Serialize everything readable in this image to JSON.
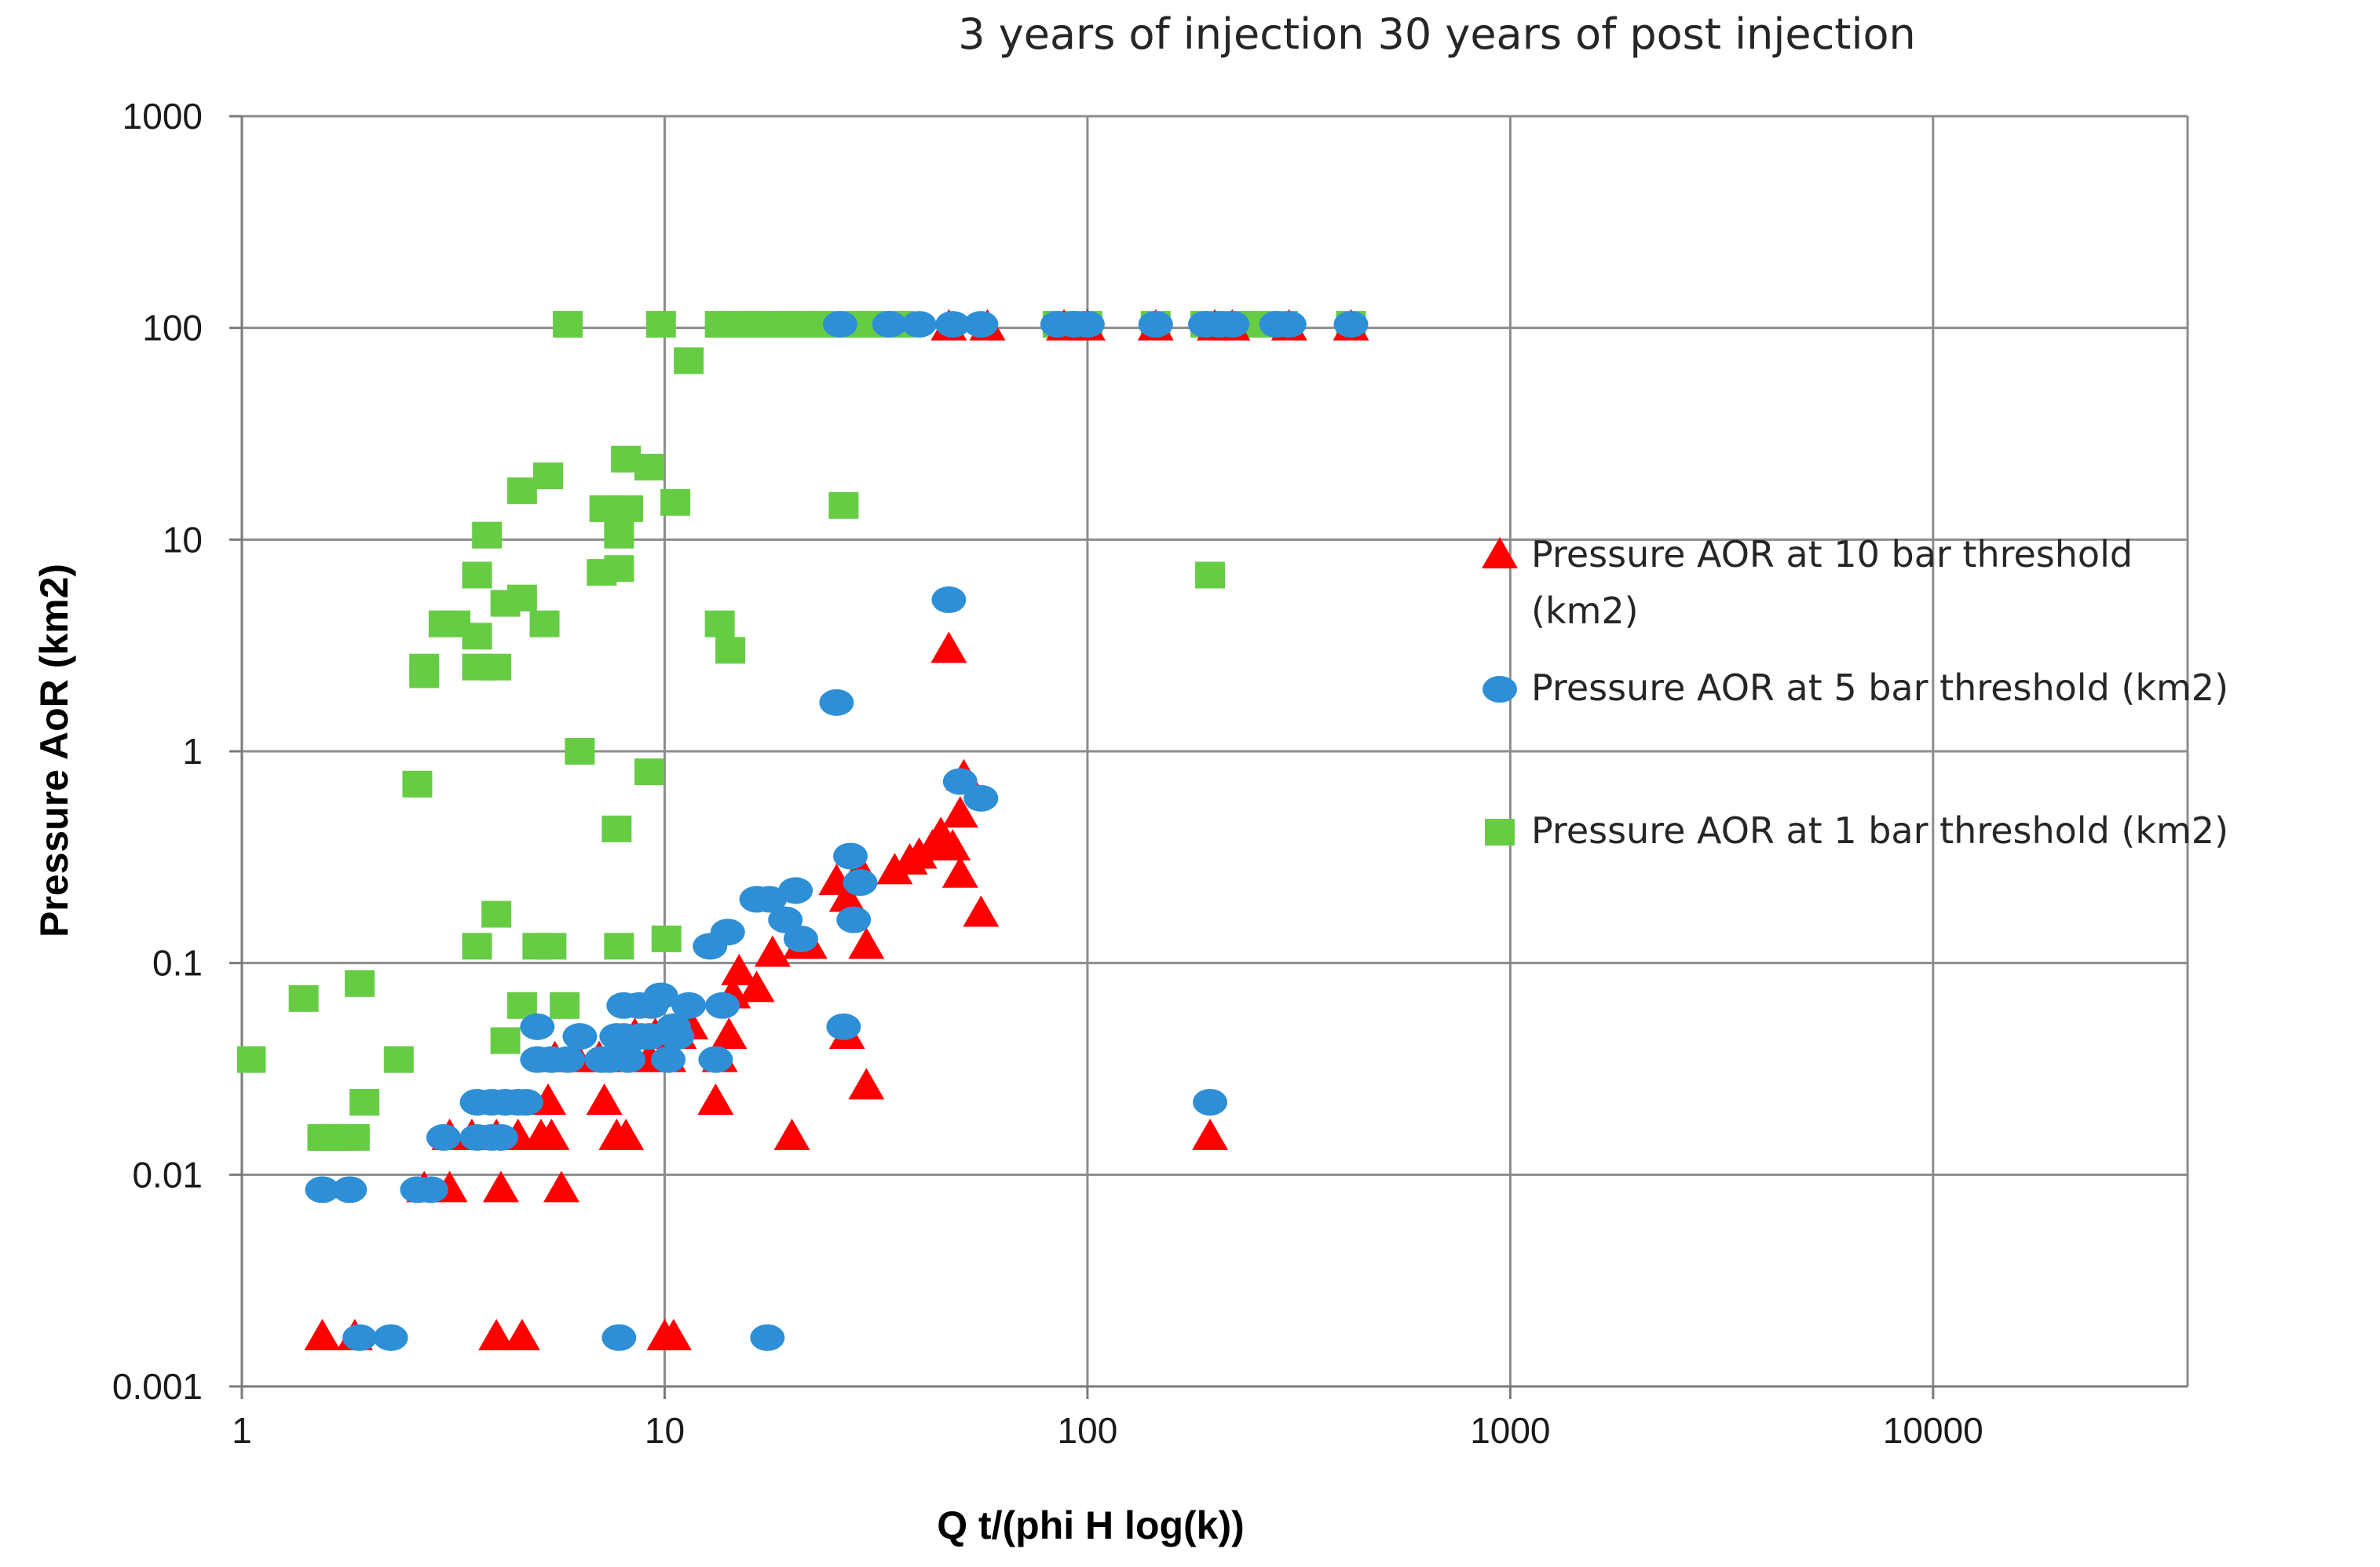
{
  "chart_data": {
    "type": "scatter",
    "title": "3 years of injection 30 years of post injection",
    "xlabel": "Q t/(phi H log(k))",
    "ylabel": "Pressure AoR (km2)",
    "xscale": "log",
    "yscale": "log",
    "xlim": [
      1,
      40000
    ],
    "ylim": [
      0.001,
      1000
    ],
    "x_ticks": [
      "1",
      "10",
      "100",
      "1000",
      "10000"
    ],
    "y_ticks": [
      "0.001",
      "0.01",
      "0.1",
      "1",
      "10",
      "100",
      "1000"
    ],
    "grid": true,
    "legend_position": "right",
    "series": [
      {
        "name": "Pressure AOR at 10 bar threshold",
        "legend_label_lines": [
          "Pressure AOR at 10 bar threshold",
          "(km2)"
        ],
        "marker": "triangle",
        "color": "#ff0000",
        "points": [
          [
            1.55,
            0.0017
          ],
          [
            1.85,
            0.0017
          ],
          [
            4.0,
            0.0017
          ],
          [
            4.6,
            0.0017
          ],
          [
            10.0,
            0.0017
          ],
          [
            10.5,
            0.0017
          ],
          [
            2.7,
            0.0085
          ],
          [
            3.1,
            0.0085
          ],
          [
            4.1,
            0.0085
          ],
          [
            5.7,
            0.0085
          ],
          [
            3.1,
            0.015
          ],
          [
            3.5,
            0.015
          ],
          [
            4.0,
            0.015
          ],
          [
            4.5,
            0.015
          ],
          [
            5.1,
            0.015
          ],
          [
            5.4,
            0.015
          ],
          [
            7.7,
            0.015
          ],
          [
            8.1,
            0.015
          ],
          [
            20,
            0.015
          ],
          [
            195,
            0.015
          ],
          [
            5.3,
            0.022
          ],
          [
            7.2,
            0.022
          ],
          [
            13.2,
            0.022
          ],
          [
            30,
            0.026
          ],
          [
            5.5,
            0.035
          ],
          [
            6.2,
            0.035
          ],
          [
            7.0,
            0.035
          ],
          [
            8.0,
            0.035
          ],
          [
            9.2,
            0.035
          ],
          [
            10.2,
            0.035
          ],
          [
            13.5,
            0.035
          ],
          [
            8.5,
            0.045
          ],
          [
            9.5,
            0.045
          ],
          [
            10.8,
            0.045
          ],
          [
            14.2,
            0.045
          ],
          [
            27,
            0.045
          ],
          [
            11.5,
            0.05
          ],
          [
            14.5,
            0.07
          ],
          [
            16.5,
            0.075
          ],
          [
            15,
            0.09
          ],
          [
            18,
            0.11
          ],
          [
            21,
            0.12
          ],
          [
            22,
            0.12
          ],
          [
            30,
            0.12
          ],
          [
            27,
            0.2
          ],
          [
            25.5,
            0.24
          ],
          [
            29,
            0.27
          ],
          [
            35,
            0.27
          ],
          [
            38,
            0.3
          ],
          [
            40,
            0.32
          ],
          [
            43,
            0.35
          ],
          [
            45,
            0.4
          ],
          [
            48,
            0.35
          ],
          [
            50,
            0.5
          ],
          [
            50,
            0.26
          ],
          [
            56,
            0.17
          ],
          [
            51,
            0.75
          ],
          [
            47,
            3.0
          ],
          [
            47,
            100
          ],
          [
            58,
            100
          ],
          [
            88,
            100
          ],
          [
            100,
            100
          ],
          [
            145,
            100
          ],
          [
            200,
            100
          ],
          [
            220,
            100
          ],
          [
            300,
            100
          ],
          [
            420,
            100
          ]
        ]
      },
      {
        "name": "Pressure AOR at 5 bar threshold",
        "legend_label_lines": [
          "Pressure AOR at 5 bar threshold (km2)"
        ],
        "marker": "circle",
        "color": "#2e8fd6",
        "points": [
          [
            1.9,
            0.0017
          ],
          [
            2.25,
            0.0017
          ],
          [
            7.8,
            0.0017
          ],
          [
            17.5,
            0.0017
          ],
          [
            1.55,
            0.0085
          ],
          [
            1.8,
            0.0085
          ],
          [
            2.6,
            0.0085
          ],
          [
            2.8,
            0.0085
          ],
          [
            3.0,
            0.015
          ],
          [
            3.6,
            0.015
          ],
          [
            3.9,
            0.015
          ],
          [
            4.1,
            0.015
          ],
          [
            3.6,
            0.022
          ],
          [
            3.9,
            0.022
          ],
          [
            4.2,
            0.022
          ],
          [
            4.5,
            0.022
          ],
          [
            4.7,
            0.022
          ],
          [
            195,
            0.022
          ],
          [
            5.0,
            0.035
          ],
          [
            5.4,
            0.035
          ],
          [
            5.9,
            0.035
          ],
          [
            7.1,
            0.035
          ],
          [
            7.4,
            0.035
          ],
          [
            8.2,
            0.035
          ],
          [
            10.2,
            0.035
          ],
          [
            13.2,
            0.035
          ],
          [
            6.3,
            0.045
          ],
          [
            7.7,
            0.045
          ],
          [
            8.0,
            0.045
          ],
          [
            8.8,
            0.045
          ],
          [
            9.2,
            0.045
          ],
          [
            10.7,
            0.045
          ],
          [
            5.0,
            0.05
          ],
          [
            26.5,
            0.05
          ],
          [
            10.5,
            0.05
          ],
          [
            8.0,
            0.063
          ],
          [
            8.7,
            0.063
          ],
          [
            9.3,
            0.063
          ],
          [
            11.4,
            0.063
          ],
          [
            13.7,
            0.063
          ],
          [
            9.8,
            0.07
          ],
          [
            12.8,
            0.12
          ],
          [
            14.1,
            0.14
          ],
          [
            16.5,
            0.2
          ],
          [
            17.7,
            0.2
          ],
          [
            19.3,
            0.16
          ],
          [
            20.4,
            0.22
          ],
          [
            21.0,
            0.13
          ],
          [
            28,
            0.16
          ],
          [
            27.5,
            0.32
          ],
          [
            29,
            0.24
          ],
          [
            50,
            0.72
          ],
          [
            56,
            0.6
          ],
          [
            25.5,
            1.7
          ],
          [
            47,
            5.2
          ],
          [
            26,
            104
          ],
          [
            34,
            104
          ],
          [
            40,
            104
          ],
          [
            48,
            104
          ],
          [
            56,
            104
          ],
          [
            85,
            104
          ],
          [
            93,
            104
          ],
          [
            100,
            104
          ],
          [
            145,
            104
          ],
          [
            190,
            104
          ],
          [
            205,
            104
          ],
          [
            220,
            104
          ],
          [
            280,
            104
          ],
          [
            300,
            104
          ],
          [
            420,
            104
          ]
        ]
      },
      {
        "name": "Pressure AOR at 1 bar threshold",
        "legend_label_lines": [
          "Pressure AOR at 1 bar threshold (km2)"
        ],
        "marker": "square",
        "color": "#66cc44",
        "points": [
          [
            1.05,
            0.035
          ],
          [
            1.4,
            0.068
          ],
          [
            1.9,
            0.08
          ],
          [
            1.7,
            0.015
          ],
          [
            1.6,
            0.015
          ],
          [
            1.55,
            0.015
          ],
          [
            1.85,
            0.015
          ],
          [
            1.95,
            0.022
          ],
          [
            2.35,
            0.035
          ],
          [
            4.2,
            0.043
          ],
          [
            4.6,
            0.063
          ],
          [
            5.8,
            0.063
          ],
          [
            3.6,
            0.12
          ],
          [
            5.0,
            0.12
          ],
          [
            5.4,
            0.12
          ],
          [
            7.8,
            0.12
          ],
          [
            10.1,
            0.13
          ],
          [
            4.0,
            0.17
          ],
          [
            7.7,
            0.43
          ],
          [
            9.2,
            0.8
          ],
          [
            2.6,
            0.7
          ],
          [
            6.3,
            1.0
          ],
          [
            2.7,
            2.3
          ],
          [
            2.7,
            2.5
          ],
          [
            3.0,
            4.0
          ],
          [
            3.2,
            4.0
          ],
          [
            3.6,
            2.5
          ],
          [
            4.0,
            2.5
          ],
          [
            3.6,
            3.5
          ],
          [
            3.6,
            6.8
          ],
          [
            3.8,
            10.5
          ],
          [
            4.2,
            5.0
          ],
          [
            4.6,
            5.3
          ],
          [
            5.2,
            4.0
          ],
          [
            13.5,
            4.0
          ],
          [
            14.3,
            3.0
          ],
          [
            4.6,
            17
          ],
          [
            5.3,
            20
          ],
          [
            7.1,
            7.0
          ],
          [
            7.8,
            7.3
          ],
          [
            7.2,
            14
          ],
          [
            8.2,
            14
          ],
          [
            7.8,
            10.5
          ],
          [
            8.1,
            24
          ],
          [
            9.2,
            22
          ],
          [
            10.6,
            15
          ],
          [
            26.5,
            14.5
          ],
          [
            11.4,
            70
          ],
          [
            195,
            6.8
          ],
          [
            5.9,
            104
          ],
          [
            9.8,
            104
          ],
          [
            13.5,
            104
          ],
          [
            15,
            104
          ],
          [
            17,
            104
          ],
          [
            19,
            104
          ],
          [
            21,
            104
          ],
          [
            24,
            104
          ],
          [
            28,
            104
          ],
          [
            32,
            104
          ],
          [
            36,
            104
          ],
          [
            85,
            104
          ],
          [
            95,
            104
          ],
          [
            100,
            104
          ],
          [
            145,
            104
          ],
          [
            190,
            104
          ],
          [
            205,
            104
          ],
          [
            215,
            104
          ],
          [
            230,
            104
          ],
          [
            250,
            104
          ],
          [
            290,
            104
          ],
          [
            420,
            104
          ]
        ]
      }
    ]
  }
}
